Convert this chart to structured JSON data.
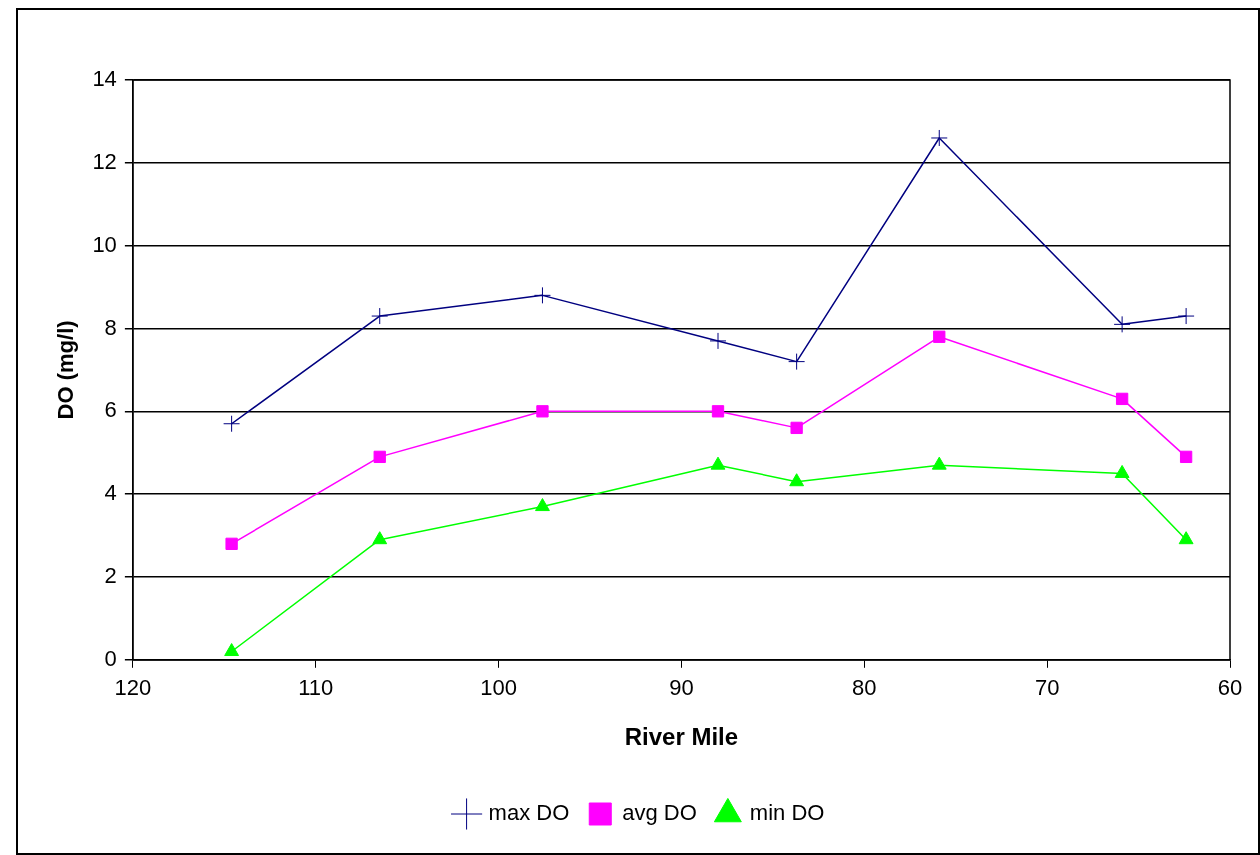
{
  "chart_data": {
    "type": "line",
    "xlabel": "River Mile",
    "ylabel": "DO (mg/l)",
    "x": [
      114.6,
      106.5,
      97.6,
      88,
      83.7,
      75.9,
      65.9,
      62.4
    ],
    "xlim": [
      120,
      60
    ],
    "xticks": [
      120,
      110,
      100,
      90,
      80,
      70,
      60
    ],
    "ylim": [
      0,
      14
    ],
    "yticks": [
      0,
      2,
      4,
      6,
      8,
      10,
      12,
      14
    ],
    "grid": "y",
    "legend": "bottom",
    "line_style": "solid",
    "series": [
      {
        "name": "max DO",
        "color": "#000080",
        "marker": "cross",
        "values": [
          5.7,
          8.3,
          8.8,
          7.7,
          7.2,
          12.6,
          8.1,
          8.3
        ]
      },
      {
        "name": "avg DO",
        "color": "#ff00ff",
        "marker": "square",
        "values": [
          2.8,
          4.9,
          6.0,
          6.0,
          5.6,
          7.8,
          6.3,
          4.9
        ]
      },
      {
        "name": "min DO",
        "color": "#00ff00",
        "marker": "triangle",
        "values": [
          0.2,
          2.9,
          3.7,
          4.7,
          4.3,
          4.7,
          4.5,
          2.9
        ]
      }
    ]
  }
}
